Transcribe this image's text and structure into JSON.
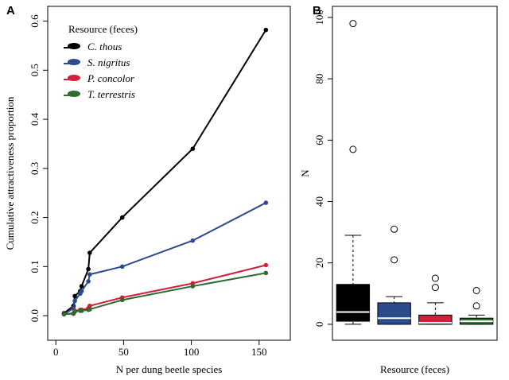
{
  "chart_data": [
    {
      "type": "line",
      "panel": "A",
      "xlabel": "N per dung beetle species",
      "ylabel": "Cumulative attractiveness proportion",
      "legend_title": "Resource (feces)",
      "legend": "top-left",
      "x": [
        6,
        13,
        14,
        18,
        19,
        24,
        25,
        49,
        101,
        155
      ],
      "series": [
        {
          "name": "C. thous",
          "color": "#000000",
          "values": [
            0.005,
            0.02,
            0.04,
            0.05,
            0.06,
            0.095,
            0.128,
            0.2,
            0.34,
            0.582
          ]
        },
        {
          "name": "S. nigritus",
          "color": "#2b4c8c",
          "values": [
            0.003,
            0.015,
            0.03,
            0.045,
            0.05,
            0.07,
            0.084,
            0.1,
            0.153,
            0.23
          ]
        },
        {
          "name": "P. concolor",
          "color": "#d21f3c",
          "values": [
            0.003,
            0.004,
            0.01,
            0.012,
            0.012,
            0.015,
            0.02,
            0.037,
            0.066,
            0.103
          ]
        },
        {
          "name": "T. terrestris",
          "color": "#2e6b30",
          "values": [
            0.003,
            0.005,
            0.008,
            0.01,
            0.01,
            0.012,
            0.013,
            0.032,
            0.06,
            0.087
          ]
        }
      ],
      "xlim": [
        -6,
        173
      ],
      "ylim": [
        -0.05,
        0.63
      ],
      "xticks": [
        0,
        50,
        100,
        150
      ],
      "yticks": [
        {
          "value": 0,
          "label": "0.0"
        },
        0.1,
        0.2,
        0.3,
        0.4,
        0.5,
        0.6
      ]
    },
    {
      "type": "box",
      "panel": "B",
      "xlabel": "Resource (feces)",
      "ylabel": "N",
      "boxes": [
        {
          "color": "#000000",
          "whisker_low": 0,
          "q1": 1,
          "median": 4,
          "q3": 13,
          "whisker_high": 29,
          "outliers": [
            57,
            98
          ]
        },
        {
          "color": "#2b4c8c",
          "whisker_low": 0,
          "q1": 0,
          "median": 2,
          "q3": 7,
          "whisker_high": 9,
          "outliers": [
            21,
            31
          ]
        },
        {
          "color": "#d21f3c",
          "whisker_low": 0,
          "q1": 0,
          "median": 0.5,
          "q3": 3,
          "whisker_high": 7,
          "outliers": [
            12,
            15
          ]
        },
        {
          "color": "#2e6b30",
          "whisker_low": 0,
          "q1": 0,
          "median": 1,
          "q3": 2,
          "whisker_high": 3,
          "outliers": [
            6,
            11
          ]
        }
      ],
      "ylim": [
        -5.2,
        103.6
      ],
      "yticks": [
        0,
        20,
        40,
        60,
        80,
        100
      ]
    }
  ]
}
